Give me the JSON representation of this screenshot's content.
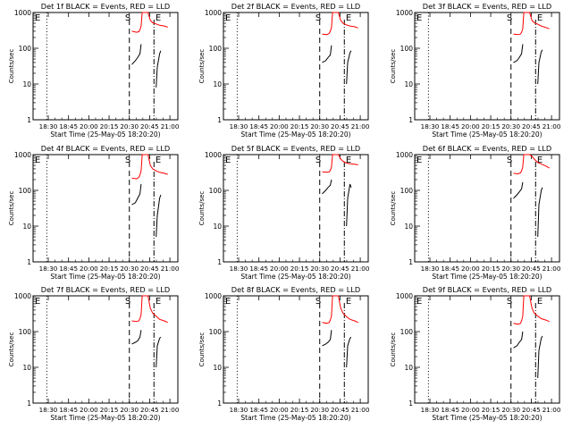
{
  "chart_data": [
    {
      "type": "line",
      "title": "Det 1f BLACK = Events, RED = LLD",
      "xlabel": "Start Time (25-May-05 18:20:20)",
      "ylabel": "Counts/sec",
      "ylim": [
        1,
        1000
      ],
      "yscale": "log",
      "xticks": [
        "18:30",
        "18:45",
        "20:00",
        "20:15",
        "20:30",
        "20:45",
        "21:00"
      ],
      "yticks": [
        "1",
        "10",
        "100",
        "1000"
      ],
      "markers": [
        "E",
        "S",
        "E"
      ],
      "series": [
        {
          "color": "#ff0000",
          "x": [
            0.79,
            0.83,
            0.85,
            0.86,
            0.87,
            0.88,
            0.93,
            0.95,
            0.97,
            1.0,
            1.03,
            1.07,
            1.1
          ],
          "y": [
            300,
            280,
            290,
            330,
            420,
            1000,
            1000,
            600,
            520,
            480,
            440,
            420,
            390
          ]
        },
        {
          "color": "#000000",
          "x": [
            0.79,
            0.82,
            0.84,
            0.86,
            0.87
          ],
          "y": [
            35,
            45,
            55,
            70,
            130
          ]
        },
        {
          "color": "#000000",
          "x": [
            1.0,
            1.01,
            1.03,
            1.04
          ],
          "y": [
            8,
            30,
            70,
            85
          ]
        }
      ]
    },
    {
      "type": "line",
      "title": "Det 2f BLACK = Events, RED = LLD",
      "xlabel": "Start Time (25-May-05 18:20:20)",
      "ylabel": "Counts/sec",
      "ylim": [
        1,
        1000
      ],
      "yscale": "log",
      "xticks": [
        "18:30",
        "18:45",
        "20:00",
        "20:15",
        "20:30",
        "20:45",
        "21:00"
      ],
      "yticks": [
        "1",
        "10",
        "100",
        "1000"
      ],
      "markers": [
        "E",
        "S",
        "E"
      ],
      "series": [
        {
          "color": "#ff0000",
          "x": [
            0.79,
            0.83,
            0.85,
            0.86,
            0.87,
            0.88,
            0.93,
            0.95,
            0.97,
            1.0,
            1.03,
            1.07,
            1.1
          ],
          "y": [
            250,
            240,
            260,
            300,
            380,
            1000,
            1000,
            600,
            500,
            450,
            420,
            400,
            370
          ]
        },
        {
          "color": "#000000",
          "x": [
            0.79,
            0.82,
            0.84,
            0.86,
            0.87
          ],
          "y": [
            40,
            45,
            55,
            65,
            120
          ]
        },
        {
          "color": "#000000",
          "x": [
            1.0,
            1.01,
            1.03,
            1.04
          ],
          "y": [
            10,
            40,
            75,
            85
          ]
        }
      ]
    },
    {
      "type": "line",
      "title": "Det 3f BLACK = Events, RED = LLD",
      "xlabel": "Start Time (25-May-05 18:20:20)",
      "ylabel": "Counts/sec",
      "ylim": [
        1,
        1000
      ],
      "yscale": "log",
      "xticks": [
        "18:30",
        "18:45",
        "20:00",
        "20:15",
        "20:30",
        "20:45",
        "21:00"
      ],
      "yticks": [
        "1",
        "10",
        "100",
        "1000"
      ],
      "markers": [
        "E",
        "S",
        "E"
      ],
      "series": [
        {
          "color": "#ff0000",
          "x": [
            0.79,
            0.83,
            0.85,
            0.86,
            0.87,
            0.88,
            0.93,
            0.95,
            0.97,
            1.0,
            1.03,
            1.07,
            1.1
          ],
          "y": [
            250,
            240,
            250,
            280,
            350,
            1000,
            1000,
            600,
            520,
            470,
            420,
            380,
            350
          ]
        },
        {
          "color": "#000000",
          "x": [
            0.79,
            0.82,
            0.84,
            0.86,
            0.87
          ],
          "y": [
            40,
            45,
            55,
            70,
            130
          ]
        },
        {
          "color": "#000000",
          "x": [
            1.0,
            1.01,
            1.03,
            1.04
          ],
          "y": [
            10,
            40,
            80,
            90
          ]
        }
      ]
    },
    {
      "type": "line",
      "title": "Det 4f BLACK = Events, RED = LLD",
      "xlabel": "Start Time (25-May-05 18:20:20)",
      "ylabel": "Counts/sec",
      "ylim": [
        1,
        1000
      ],
      "yscale": "log",
      "xticks": [
        "18:30",
        "18:45",
        "20:00",
        "20:15",
        "20:30",
        "20:45",
        "21:00"
      ],
      "yticks": [
        "1",
        "10",
        "100",
        "1000"
      ],
      "markers": [
        "E",
        "S",
        "E"
      ],
      "series": [
        {
          "color": "#ff0000",
          "x": [
            0.79,
            0.83,
            0.85,
            0.86,
            0.87,
            0.88,
            0.93,
            0.95,
            0.97,
            1.0,
            1.03,
            1.07,
            1.1
          ],
          "y": [
            220,
            210,
            230,
            270,
            350,
            1000,
            1000,
            500,
            400,
            350,
            320,
            300,
            280
          ]
        },
        {
          "color": "#000000",
          "x": [
            0.79,
            0.82,
            0.84,
            0.86,
            0.87
          ],
          "y": [
            40,
            45,
            60,
            80,
            150
          ]
        },
        {
          "color": "#000000",
          "x": [
            1.0,
            1.01,
            1.03,
            1.04
          ],
          "y": [
            5,
            20,
            60,
            75
          ]
        }
      ]
    },
    {
      "type": "line",
      "title": "Det 5f BLACK = Events, RED = LLD",
      "xlabel": "Start Time (25-May-05 18:20:20)",
      "ylabel": "Counts/sec",
      "ylim": [
        1,
        1000
      ],
      "yscale": "log",
      "xticks": [
        "18:30",
        "18:45",
        "20:00",
        "20:15",
        "20:30",
        "20:45",
        "21:00"
      ],
      "yticks": [
        "1",
        "10",
        "100",
        "1000"
      ],
      "markers": [
        "E",
        "S",
        "E"
      ],
      "series": [
        {
          "color": "#ff0000",
          "x": [
            0.79,
            0.83,
            0.85,
            0.86,
            0.87,
            0.88,
            0.93,
            0.95,
            0.97,
            1.0,
            1.03,
            1.07,
            1.1
          ],
          "y": [
            330,
            320,
            330,
            360,
            450,
            1000,
            1000,
            750,
            650,
            580,
            560,
            540,
            520
          ]
        },
        {
          "color": "#000000",
          "x": [
            0.79,
            0.82,
            0.84,
            0.86,
            0.87
          ],
          "y": [
            80,
            100,
            120,
            140,
            200
          ]
        },
        {
          "color": "#000000",
          "x": [
            1.0,
            1.01,
            1.03,
            1.04
          ],
          "y": [
            10,
            60,
            150,
            120
          ]
        }
      ]
    },
    {
      "type": "line",
      "title": "Det 6f BLACK = Events, RED = LLD",
      "xlabel": "Start Time (25-May-05 18:20:20)",
      "ylabel": "Counts/sec",
      "ylim": [
        1,
        1000
      ],
      "yscale": "log",
      "xticks": [
        "18:30",
        "18:45",
        "20:00",
        "20:15",
        "20:30",
        "20:45",
        "21:00"
      ],
      "yticks": [
        "1",
        "10",
        "100",
        "1000"
      ],
      "markers": [
        "E",
        "S",
        "E"
      ],
      "series": [
        {
          "color": "#ff0000",
          "x": [
            0.79,
            0.83,
            0.85,
            0.86,
            0.87,
            0.88,
            0.93,
            0.95,
            0.97,
            1.0,
            1.03,
            1.07,
            1.1
          ],
          "y": [
            300,
            290,
            310,
            350,
            450,
            1000,
            1000,
            900,
            750,
            600,
            550,
            480,
            420
          ]
        },
        {
          "color": "#000000",
          "x": [
            0.79,
            0.82,
            0.84,
            0.86,
            0.87
          ],
          "y": [
            60,
            75,
            90,
            110,
            170
          ]
        },
        {
          "color": "#000000",
          "x": [
            1.0,
            1.01,
            1.03,
            1.04
          ],
          "y": [
            5,
            40,
            100,
            120
          ]
        }
      ]
    },
    {
      "type": "line",
      "title": "Det 7f BLACK = Events, RED = LLD",
      "xlabel": "Start Time (25-May-05 18:20:20)",
      "ylabel": "Counts/sec",
      "ylim": [
        1,
        1000
      ],
      "yscale": "log",
      "xticks": [
        "18:30",
        "18:45",
        "20:00",
        "20:15",
        "20:30",
        "20:45",
        "21:00"
      ],
      "yticks": [
        "1",
        "10",
        "100",
        "1000"
      ],
      "markers": [
        "E",
        "S",
        "E"
      ],
      "series": [
        {
          "color": "#ff0000",
          "x": [
            0.79,
            0.83,
            0.85,
            0.86,
            0.87,
            0.88,
            0.93,
            0.95,
            0.97,
            1.0,
            1.03,
            1.07,
            1.1
          ],
          "y": [
            200,
            190,
            200,
            230,
            300,
            1000,
            1000,
            450,
            330,
            270,
            220,
            200,
            180
          ]
        },
        {
          "color": "#000000",
          "x": [
            0.79,
            0.82,
            0.84,
            0.86,
            0.87
          ],
          "y": [
            45,
            50,
            55,
            70,
            110
          ]
        },
        {
          "color": "#000000",
          "x": [
            1.0,
            1.01,
            1.03,
            1.04
          ],
          "y": [
            10,
            40,
            65,
            70
          ]
        }
      ]
    },
    {
      "type": "line",
      "title": "Det 8f BLACK = Events, RED = LLD",
      "xlabel": "Start Time (25-May-05 18:20:20)",
      "ylabel": "Counts/sec",
      "ylim": [
        1,
        1000
      ],
      "yscale": "log",
      "xticks": [
        "18:30",
        "18:45",
        "20:00",
        "20:15",
        "20:30",
        "20:45",
        "21:00"
      ],
      "yticks": [
        "1",
        "10",
        "100",
        "1000"
      ],
      "markers": [
        "E",
        "S",
        "E"
      ],
      "series": [
        {
          "color": "#ff0000",
          "x": [
            0.79,
            0.83,
            0.85,
            0.86,
            0.87,
            0.88,
            0.93,
            0.95,
            0.97,
            1.0,
            1.03,
            1.07,
            1.1
          ],
          "y": [
            180,
            170,
            180,
            210,
            280,
            1000,
            1000,
            450,
            330,
            260,
            220,
            200,
            180
          ]
        },
        {
          "color": "#000000",
          "x": [
            0.79,
            0.82,
            0.84,
            0.86,
            0.87
          ],
          "y": [
            40,
            45,
            50,
            60,
            110
          ]
        },
        {
          "color": "#000000",
          "x": [
            1.0,
            1.01,
            1.03,
            1.04
          ],
          "y": [
            10,
            40,
            65,
            70
          ]
        }
      ]
    },
    {
      "type": "line",
      "title": "Det 9f BLACK = Events, RED = LLD",
      "xlabel": "Start Time (25-May-05 18:20:20)",
      "ylabel": "Counts/sec",
      "ylim": [
        1,
        1000
      ],
      "yscale": "log",
      "xticks": [
        "18:30",
        "18:45",
        "20:00",
        "20:15",
        "20:30",
        "20:45",
        "21:00"
      ],
      "yticks": [
        "1",
        "10",
        "100",
        "1000"
      ],
      "markers": [
        "E",
        "S",
        "E"
      ],
      "series": [
        {
          "color": "#ff0000",
          "x": [
            0.79,
            0.83,
            0.85,
            0.86,
            0.87,
            0.88,
            0.93,
            0.95,
            0.97,
            1.0,
            1.03,
            1.07,
            1.1
          ],
          "y": [
            170,
            160,
            170,
            200,
            270,
            1000,
            1000,
            450,
            330,
            270,
            230,
            210,
            190
          ]
        },
        {
          "color": "#000000",
          "x": [
            0.79,
            0.82,
            0.84,
            0.86,
            0.87
          ],
          "y": [
            35,
            40,
            50,
            60,
            100
          ]
        },
        {
          "color": "#000000",
          "x": [
            1.0,
            1.01,
            1.03,
            1.04
          ],
          "y": [
            5,
            30,
            65,
            75
          ]
        }
      ]
    }
  ]
}
